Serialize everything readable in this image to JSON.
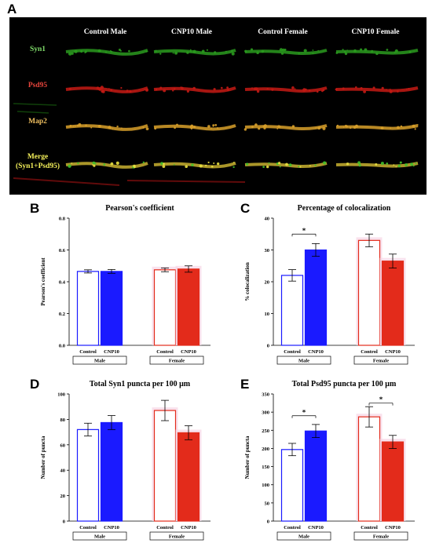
{
  "panel_letters": {
    "a": "A",
    "b": "B",
    "c": "C",
    "d": "D",
    "e": "E"
  },
  "micro": {
    "columns": [
      "Control Male",
      "CNP10 Male",
      "Control Female",
      "CNP10 Female"
    ],
    "rows": [
      {
        "label": "Syn1",
        "color": "#7fdc6a"
      },
      {
        "label": "Psd95",
        "color": "#e8453c"
      },
      {
        "label": "Map2",
        "color": "#f0c060"
      },
      {
        "label": "Merge\n(Syn1+Psd95)",
        "color": "#f4f05a"
      }
    ],
    "colors": {
      "syn1": "#2a9a1e",
      "psd95": "#c41a14",
      "map2": "#d8a02a",
      "merge": "#c8b030"
    }
  },
  "chart_data": [
    {
      "id": "B",
      "type": "bar",
      "title": "Pearson's coefficient",
      "ylabel": "Pearson's coefficient",
      "ylim": [
        0,
        0.8
      ],
      "yticks": [
        "0.0",
        "0.2",
        "0.4",
        "0.6",
        "0.8"
      ],
      "categories": [
        "Control",
        "CNP10",
        "Control",
        "CNP10"
      ],
      "groups": [
        "Male",
        "Female"
      ],
      "values": [
        0.465,
        0.465,
        0.475,
        0.48
      ],
      "errors": [
        0.01,
        0.012,
        0.012,
        0.02
      ],
      "colors": [
        "#1a1aff",
        "#1a1aff",
        "#e32b1b",
        "#e32b1b"
      ],
      "filled": [
        false,
        true,
        false,
        true
      ],
      "sig": []
    },
    {
      "id": "C",
      "type": "bar",
      "title": "Percentage of colocalization",
      "ylabel": "% colocalization",
      "ylim": [
        0,
        40
      ],
      "yticks": [
        "0",
        "10",
        "20",
        "30",
        "40"
      ],
      "categories": [
        "Control",
        "CNP10",
        "Control",
        "CNP10"
      ],
      "groups": [
        "Male",
        "Female"
      ],
      "values": [
        22,
        30,
        33,
        26.5
      ],
      "errors": [
        1.8,
        2,
        2,
        2.2
      ],
      "colors": [
        "#1a1aff",
        "#1a1aff",
        "#e32b1b",
        "#e32b1b"
      ],
      "filled": [
        false,
        true,
        false,
        true
      ],
      "sig": [
        {
          "from": 0,
          "to": 1,
          "label": "*",
          "y": 35
        }
      ]
    },
    {
      "id": "D",
      "type": "bar",
      "title": "Total Syn1 puncta per 100 μm",
      "ylabel": "Number of puncta",
      "ylim": [
        0,
        100
      ],
      "yticks": [
        "0",
        "20",
        "40",
        "60",
        "80",
        "100"
      ],
      "categories": [
        "Control",
        "CNP10",
        "Control",
        "CNP10"
      ],
      "groups": [
        "Male",
        "Female"
      ],
      "values": [
        72,
        77.5,
        87,
        69.5
      ],
      "errors": [
        5,
        5.5,
        8,
        5.5
      ],
      "colors": [
        "#1a1aff",
        "#1a1aff",
        "#e32b1b",
        "#e32b1b"
      ],
      "filled": [
        false,
        true,
        false,
        true
      ],
      "sig": []
    },
    {
      "id": "E",
      "type": "bar",
      "title": "Total Psd95 puncta per 100 μm",
      "ylabel": "Number of puncta",
      "ylim": [
        0,
        350
      ],
      "yticks": [
        "0",
        "50",
        "100",
        "150",
        "200",
        "250",
        "300",
        "350"
      ],
      "categories": [
        "Control",
        "CNP10",
        "Control",
        "CNP10"
      ],
      "groups": [
        "Male",
        "Female"
      ],
      "values": [
        197,
        248,
        287,
        218
      ],
      "errors": [
        17,
        18,
        28,
        18
      ],
      "colors": [
        "#1a1aff",
        "#1a1aff",
        "#e32b1b",
        "#e32b1b"
      ],
      "filled": [
        false,
        true,
        false,
        true
      ],
      "sig": [
        {
          "from": 0,
          "to": 1,
          "label": "*",
          "y": 290
        },
        {
          "from": 2,
          "to": 3,
          "label": "*",
          "y": 325
        }
      ]
    }
  ]
}
